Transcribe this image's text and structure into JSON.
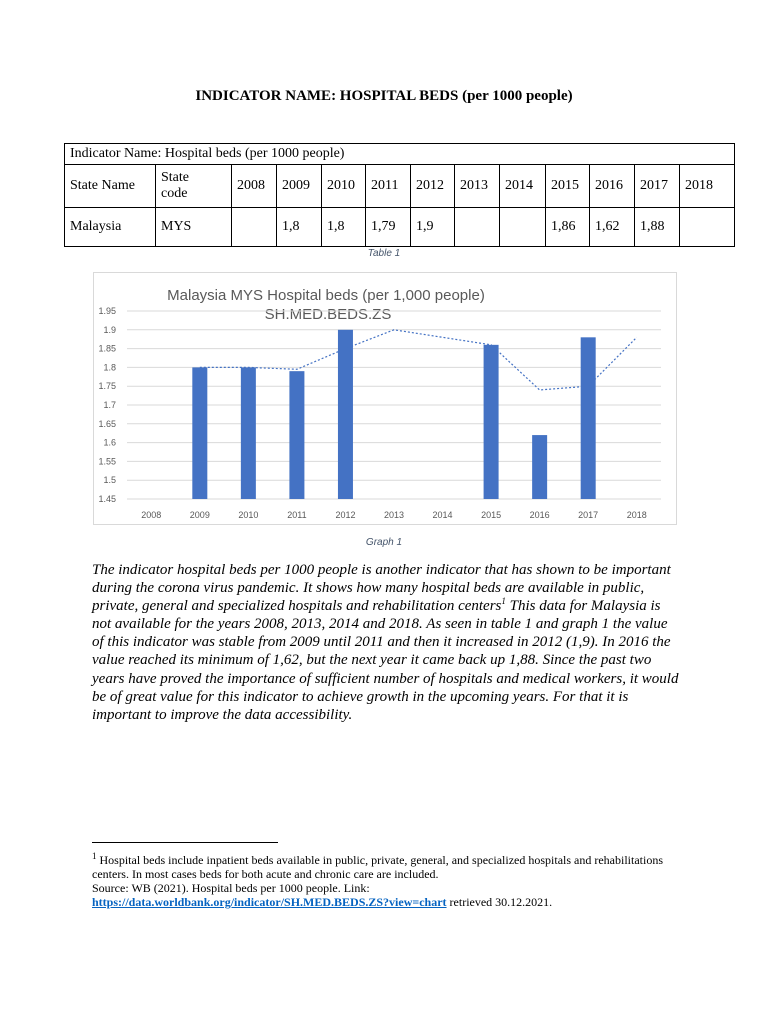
{
  "document": {
    "title": "INDICATOR NAME: HOSPITAL BEDS (per 1000 people)"
  },
  "table": {
    "indicator_row": "Indicator Name: Hospital beds (per 1000 people)",
    "headers": [
      "State Name",
      "State code",
      "2008",
      "2009",
      "2010",
      "2011",
      "2012",
      "2013",
      "2014",
      "2015",
      "2016",
      "2017",
      "2018"
    ],
    "state_code_header_line1": "State",
    "state_code_header_line2": "code",
    "row": [
      "Malaysia",
      "MYS",
      "",
      "1,8",
      "1,8",
      "1,79",
      "1,9",
      "",
      "",
      "1,86",
      "1,62",
      "1,88",
      ""
    ]
  },
  "table_caption": "Table 1",
  "chart_caption": "Graph 1",
  "chart_data": {
    "type": "bar",
    "title_line1": "Malaysia MYS Hospital beds (per 1,000 people)",
    "title_line2": "SH.MED.BEDS.ZS",
    "categories": [
      "2008",
      "2009",
      "2010",
      "2011",
      "2012",
      "2013",
      "2014",
      "2015",
      "2016",
      "2017",
      "2018"
    ],
    "values": [
      null,
      1.8,
      1.8,
      1.79,
      1.9,
      null,
      null,
      1.86,
      1.62,
      1.88,
      null
    ],
    "trendline": [
      null,
      1.8,
      1.8,
      1.795,
      1.85,
      1.9,
      1.88,
      1.86,
      1.74,
      1.75,
      1.88
    ],
    "ylim": [
      1.45,
      1.95
    ],
    "yticks": [
      "1.95",
      "1.9",
      "1.85",
      "1.8",
      "1.75",
      "1.7",
      "1.65",
      "1.6",
      "1.55",
      "1.5",
      "1.45"
    ],
    "grid": true,
    "bar_color": "#4472c4",
    "trend_color": "#4472c4"
  },
  "paragraph": {
    "part1": "The indicator hospital beds per 1000 people is another indicator that has shown to be important during the corona virus pandemic. It shows how many hospital beds are available in public, private, general and specialized hospitals and rehabilitation centers",
    "footnote_ref": "1",
    "part2": " This data for Malaysia is not available for the years 2008, 2013, 2014 and 2018. As seen in table 1 and graph 1 the value of this indicator was stable from 2009 until 2011 and then it increased in 2012 (1,9). In 2016 the value reached its minimum of 1,62, but the next year it came back up 1,88. Since the past two years have proved the importance of sufficient number of hospitals and medical workers, it would be of great value for this indicator to achieve growth in the upcoming years. For that it is important to improve the data accessibility."
  },
  "footnote": {
    "number": "1",
    "text": " Hospital beds include inpatient beds available in public, private, general, and specialized hospitals and rehabilitations centers. In most cases beds for both acute and chronic care are included.",
    "source": "Source: WB (2021). Hospital beds per 1000 people. Link:",
    "link": "https://data.worldbank.org/indicator/SH.MED.BEDS.ZS?view=chart",
    "retrieved": " retrieved 30.12.2021."
  }
}
